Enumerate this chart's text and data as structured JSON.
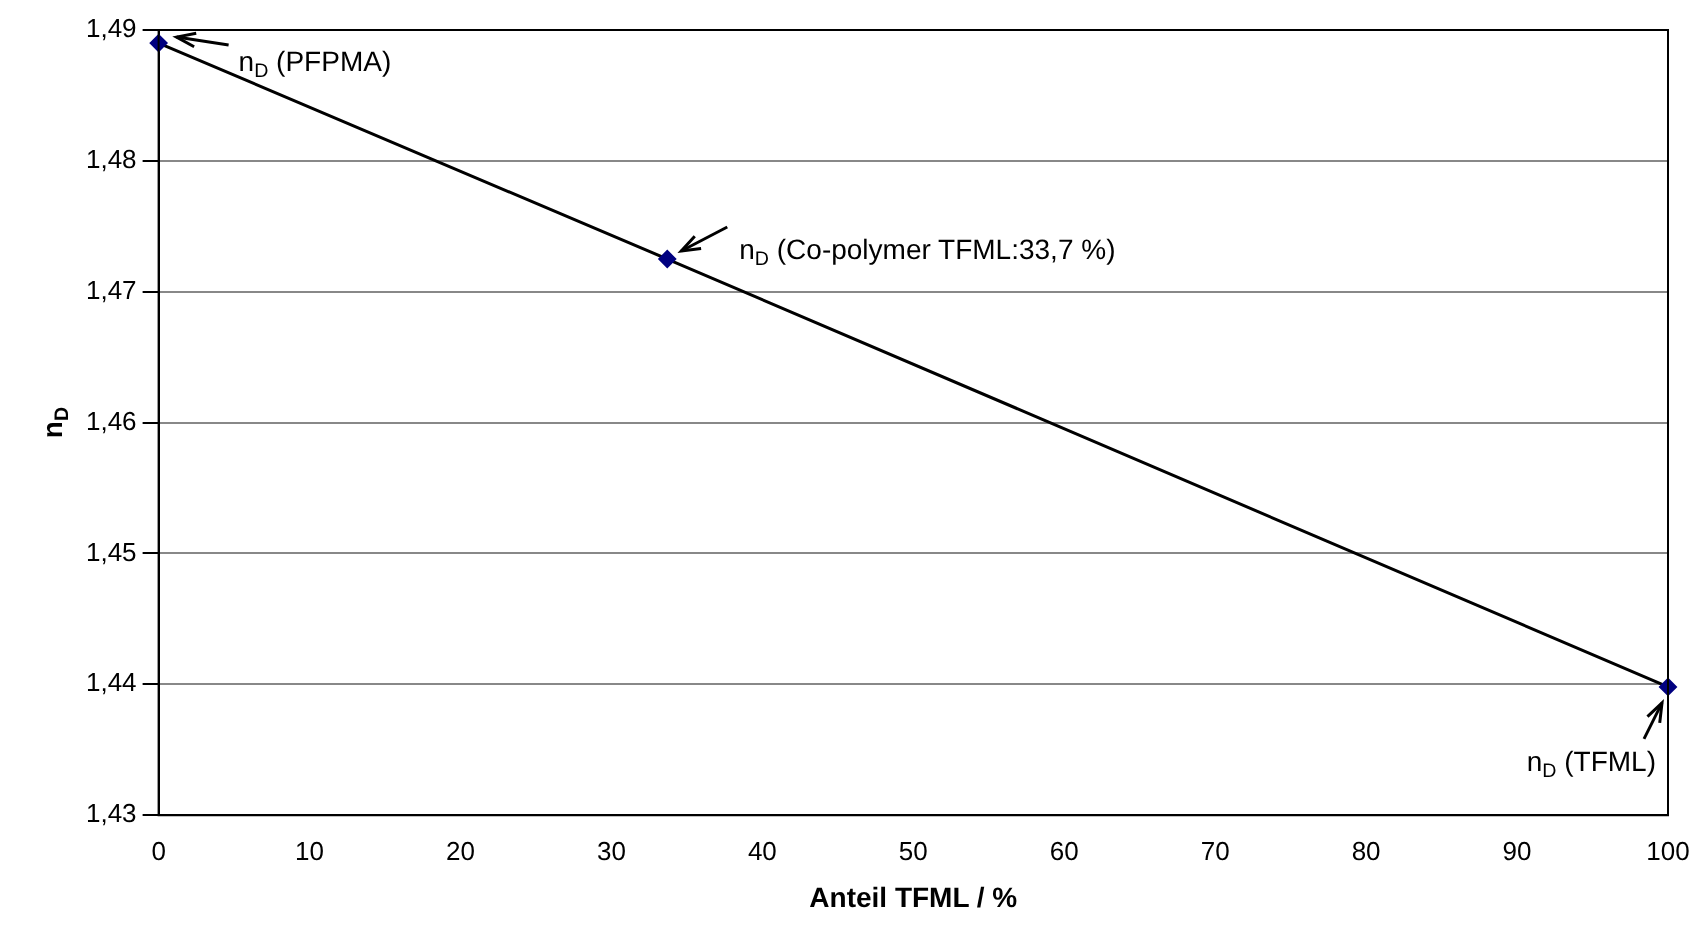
{
  "chart_data": {
    "type": "line",
    "xlabel": "Anteil TFML / %",
    "ylabel": "n$_{D}$",
    "x": [
      0,
      33.7,
      100
    ],
    "series": [
      {
        "type": "line",
        "color": "#000000",
        "marker": "none",
        "values": [
          1.489,
          1.4725,
          1.4398
        ]
      },
      {
        "type": "scatter",
        "color": "#000080",
        "marker": "diamond",
        "values": [
          1.489,
          1.4725,
          1.4398
        ]
      }
    ],
    "xlim": [
      0,
      100
    ],
    "xticks": [
      0,
      10,
      20,
      30,
      40,
      50,
      60,
      70,
      80,
      90,
      100
    ],
    "ylim": [
      1.43,
      1.49
    ],
    "yticks": [
      {
        "value": 1.43,
        "label": "1,43"
      },
      {
        "value": 1.44,
        "label": "1,44"
      },
      {
        "value": 1.45,
        "label": "1,45"
      },
      {
        "value": 1.46,
        "label": "1,46"
      },
      {
        "value": 1.47,
        "label": "1,47"
      },
      {
        "value": 1.48,
        "label": "1,48"
      },
      {
        "value": 1.49,
        "label": "1,49"
      }
    ],
    "grid": "y",
    "legend": false,
    "annotations": [
      {
        "text": "n$_{D}$ (PFPMA)",
        "x": 0,
        "y": 1.489
      },
      {
        "text": "n$_{D}$ (Co-polymer TFML:33,7 %)",
        "x": 33.7,
        "y": 1.4725
      },
      {
        "text": "n$_{D}$ (TFML)",
        "x": 100,
        "y": 1.4398
      }
    ]
  }
}
